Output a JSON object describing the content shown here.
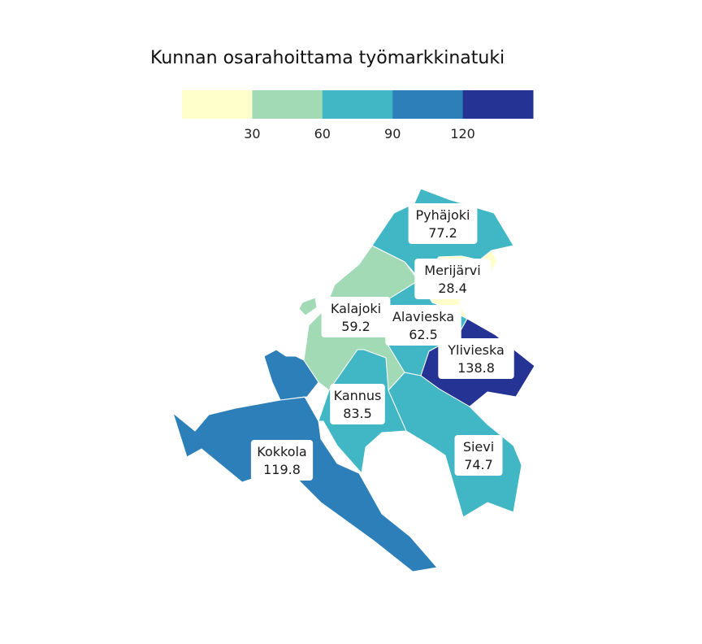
{
  "title": "Kunnan osarahoittama työmarkkinatuki",
  "legend": {
    "breaks": [
      30,
      60,
      90,
      120
    ],
    "tick_labels": [
      "30",
      "60",
      "90",
      "120"
    ],
    "colors": [
      "#ffffcc",
      "#a1dab4",
      "#41b6c4",
      "#2c7fb8",
      "#253494"
    ]
  },
  "chart_data": {
    "type": "choropleth",
    "title": "Kunnan osarahoittama työmarkkinatuki",
    "legend_placement": "top",
    "regions": [
      {
        "name": "Pyhäjoki",
        "value": 77.2,
        "value_label": "77.2"
      },
      {
        "name": "Merijärvi",
        "value": 28.4,
        "value_label": "28.4"
      },
      {
        "name": "Kalajoki",
        "value": 59.2,
        "value_label": "59.2"
      },
      {
        "name": "Alavieska",
        "value": 62.5,
        "value_label": "62.5"
      },
      {
        "name": "Ylivieska",
        "value": 138.8,
        "value_label": "138.8"
      },
      {
        "name": "Kannus",
        "value": 83.5,
        "value_label": "83.5"
      },
      {
        "name": "Sievi",
        "value": 74.7,
        "value_label": "74.7"
      },
      {
        "name": "Kokkola",
        "value": 119.8,
        "value_label": "119.8"
      }
    ]
  }
}
